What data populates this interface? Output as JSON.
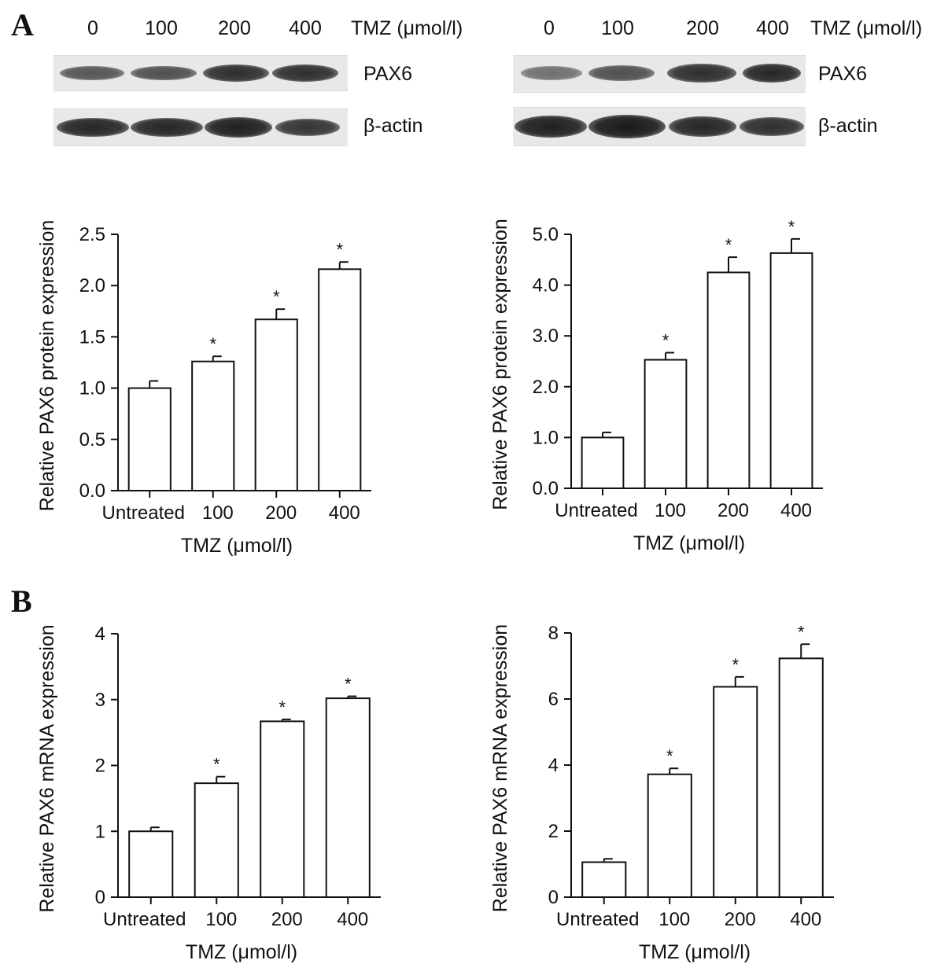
{
  "panels": {
    "a_label": "A",
    "b_label": "B"
  },
  "blots": [
    {
      "lanes": [
        "0",
        "100",
        "200",
        "400"
      ],
      "treatment_label": "TMZ (μmol/l)",
      "rows": [
        {
          "label": "PAX6",
          "intensity": [
            0.55,
            0.6,
            0.85,
            0.85
          ]
        },
        {
          "label": "β-actin",
          "intensity": [
            0.9,
            0.9,
            0.95,
            0.8
          ]
        }
      ]
    },
    {
      "lanes": [
        "0",
        "100",
        "200",
        "400"
      ],
      "treatment_label": "TMZ (μmol/l)",
      "rows": [
        {
          "label": "PAX6",
          "intensity": [
            0.35,
            0.6,
            0.85,
            0.9
          ]
        },
        {
          "label": "β-actin",
          "intensity": [
            0.95,
            1.0,
            0.9,
            0.85
          ]
        }
      ]
    }
  ],
  "chart_data": [
    {
      "type": "bar",
      "panel": "A",
      "categories": [
        "Untreated",
        "100",
        "200",
        "400"
      ],
      "values": [
        1.0,
        1.26,
        1.67,
        2.16
      ],
      "errors": [
        0.07,
        0.05,
        0.1,
        0.07
      ],
      "significant": [
        "",
        "*",
        "*",
        "*"
      ],
      "ylim": [
        0,
        2.5
      ],
      "yticks": [
        "0.0",
        "0.5",
        "1.0",
        "1.5",
        "2.0",
        "2.5"
      ],
      "ylabel": "Relative PAX6 protein expression",
      "xlabel": "TMZ (μmol/l)"
    },
    {
      "type": "bar",
      "panel": "A",
      "categories": [
        "Untreated",
        "100",
        "200",
        "400"
      ],
      "values": [
        1.0,
        2.53,
        4.25,
        4.63
      ],
      "errors": [
        0.1,
        0.14,
        0.3,
        0.28
      ],
      "significant": [
        "",
        "*",
        "*",
        "*"
      ],
      "ylim": [
        0,
        5
      ],
      "yticks": [
        "0.0",
        "1.0",
        "2.0",
        "3.0",
        "4.0",
        "5.0"
      ],
      "ylabel": "Relative PAX6 protein expression",
      "xlabel": "TMZ (μmol/l)"
    },
    {
      "type": "bar",
      "panel": "B",
      "categories": [
        "Untreated",
        "100",
        "200",
        "400"
      ],
      "values": [
        1.0,
        1.73,
        2.67,
        3.02
      ],
      "errors": [
        0.06,
        0.1,
        0.03,
        0.03
      ],
      "significant": [
        "",
        "*",
        "*",
        "*"
      ],
      "ylim": [
        0,
        4
      ],
      "yticks": [
        "0",
        "1",
        "2",
        "3",
        "4"
      ],
      "ylabel": "Relative PAX6 mRNA expression",
      "xlabel": "TMZ (μmol/l)"
    },
    {
      "type": "bar",
      "panel": "B",
      "categories": [
        "Untreated",
        "100",
        "200",
        "400"
      ],
      "values": [
        1.06,
        3.72,
        6.37,
        7.23
      ],
      "errors": [
        0.1,
        0.18,
        0.3,
        0.43
      ],
      "significant": [
        "",
        "*",
        "*",
        "*"
      ],
      "ylim": [
        0,
        8
      ],
      "yticks": [
        "0",
        "2",
        "4",
        "6",
        "8"
      ],
      "ylabel": "Relative PAX6 mRNA expression",
      "xlabel": "TMZ (μmol/l)"
    }
  ]
}
